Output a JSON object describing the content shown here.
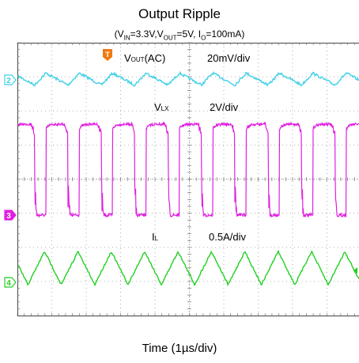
{
  "title": "Output Ripple",
  "subtitle": {
    "open": "(V",
    "vin_sub": "IN",
    "vin_val": "=3.3V,V",
    "vout_sub": "OUT",
    "vout_val": "=5V, I",
    "io_sub": "O",
    "io_val": "=100mA)"
  },
  "chart_data": {
    "type": "line",
    "xlabel": "Time (1µs/div)",
    "x_divisions": 10,
    "y_divisions": 8,
    "x_unit": "µs",
    "x_range": [
      0,
      10
    ],
    "trigger_marker": "T",
    "series": [
      {
        "name": "VOUT(AC)",
        "label_main": "V",
        "label_sub": "OUT",
        "label_suffix": "(AC)",
        "scale": "20mV/div",
        "channel": "2",
        "color": "#3fd0e8",
        "waveform": "ripple",
        "period_us": 0.97,
        "amplitude_div": 0.35
      },
      {
        "name": "VLX",
        "label_main": "V",
        "label_sub": "LX",
        "label_suffix": "",
        "scale": "2V/div",
        "channel": "3",
        "color": "#e020e0",
        "waveform": "switch",
        "period_us": 0.97,
        "amplitude_div": 2.6
      },
      {
        "name": "IL",
        "label_main": "I",
        "label_sub": "L",
        "label_suffix": "",
        "scale": "0.5A/div",
        "channel": "4",
        "color": "#22d022",
        "waveform": "triangle",
        "period_us": 0.97,
        "amplitude_div": 1.0
      }
    ]
  }
}
